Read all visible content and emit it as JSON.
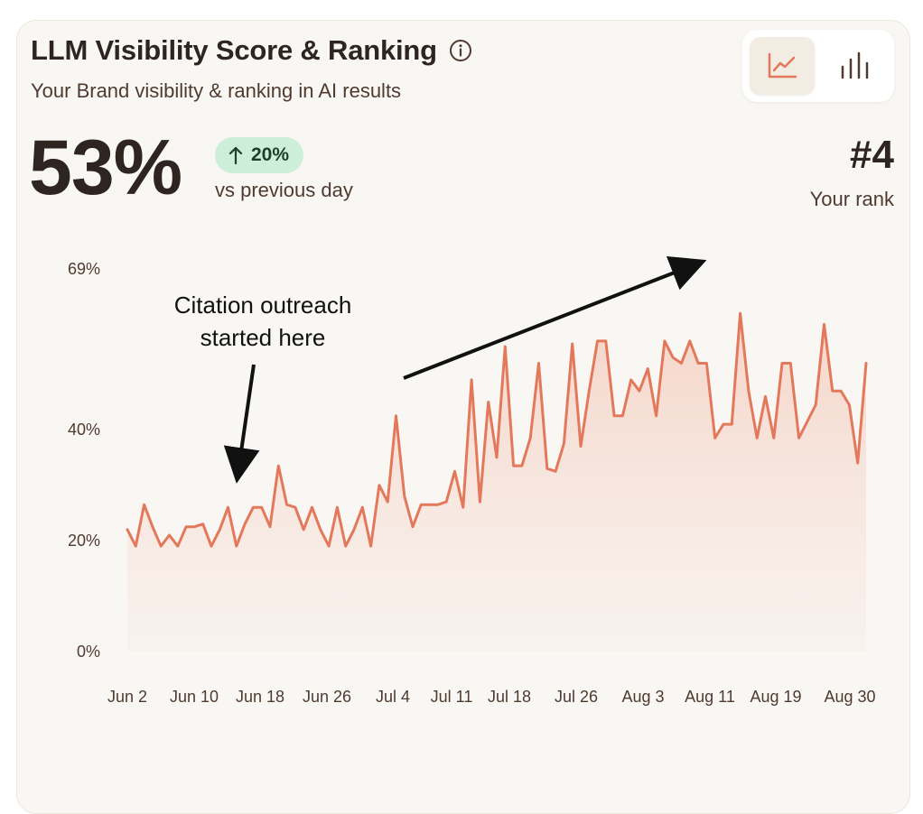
{
  "header": {
    "title": "LLM Visibility Score & Ranking",
    "subtitle": "Your Brand visibility & ranking in AI results"
  },
  "toggle": {
    "options": [
      "line-chart-icon",
      "bar-chart-icon"
    ],
    "active": "line-chart-icon"
  },
  "summary": {
    "score": "53%",
    "delta": "20%",
    "delta_direction": "up",
    "delta_caption": "vs previous day",
    "rank": "#4",
    "rank_caption": "Your rank"
  },
  "colors": {
    "line": "#e4785b",
    "area": "#f4d4c8",
    "badge_bg": "#cdeed9",
    "text": "#2f2520"
  },
  "chart_data": {
    "type": "area",
    "title": "",
    "xlabel": "",
    "ylabel": "",
    "ylim": [
      0,
      69
    ],
    "y_ticks": [
      "0%",
      "20%",
      "40%",
      "69%"
    ],
    "y_tick_values": [
      0,
      20,
      40,
      69
    ],
    "x_ticks": [
      "Jun 2",
      "Jun 10",
      "Jun 18",
      "Jun 26",
      "Jul 4",
      "Jul 11",
      "Jul 18",
      "Jul 26",
      "Aug 3",
      "Aug 11",
      "Aug 19",
      "Aug 30"
    ],
    "grid": false,
    "legend": "none",
    "series": [
      {
        "values": [
          22.0,
          19.0,
          26.5,
          22.5,
          19.0,
          21.0,
          19.0,
          22.5,
          22.5,
          23.0,
          19.0,
          22.0,
          26.0,
          19.0,
          23.0,
          26.0,
          26.0,
          22.5,
          33.5,
          26.5,
          26.0,
          22.0,
          26.0,
          22.0,
          19.0,
          26.0,
          19.0,
          22.0,
          26.0,
          19.0,
          30.0,
          27.0,
          42.5,
          28.0,
          22.5,
          26.5,
          26.5,
          26.5,
          27.0,
          32.5,
          26.0,
          49.0,
          27.0,
          45.0,
          35.0,
          55.0,
          33.5,
          33.5,
          38.5,
          52.0,
          33.0,
          32.5,
          37.5,
          55.5,
          37.0,
          47.0,
          56.0,
          56.0,
          42.5,
          42.5,
          49.0,
          47.0,
          51.0,
          42.5,
          56.0,
          53.0,
          52.0,
          56.0,
          52.0,
          52.0,
          38.5,
          41.0,
          41.0,
          61.0,
          47.0,
          38.5,
          46.0,
          38.5,
          52.0,
          52.0,
          38.5,
          41.5,
          44.5,
          59.0,
          47.0,
          47.0,
          44.5,
          34.0,
          52.0
        ]
      }
    ]
  },
  "annotations": {
    "citation_line1": "Citation outreach",
    "citation_line2": "started here"
  }
}
